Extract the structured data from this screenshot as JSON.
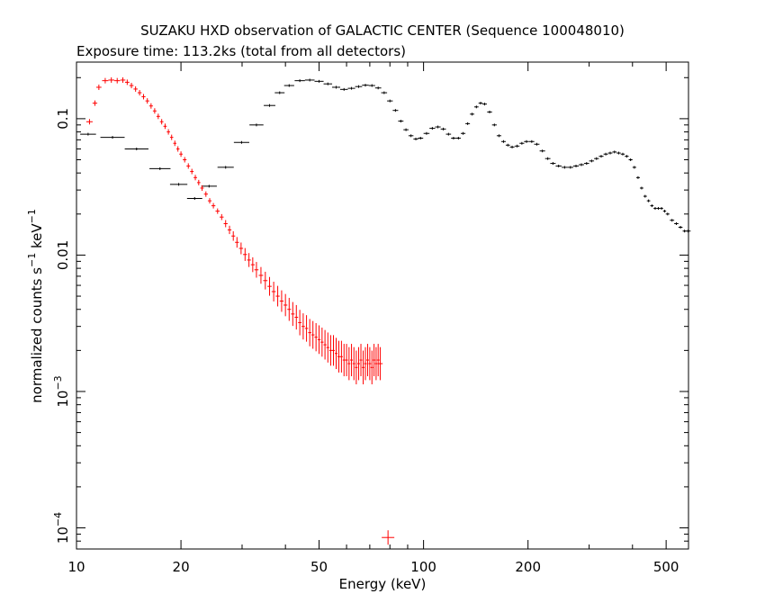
{
  "chart_data": {
    "type": "scatter",
    "title": "SUZAKU HXD observation of GALACTIC CENTER (Sequence 100048010)",
    "subtitle": "Exposure time: 113.2ks (total from all detectors)",
    "xlabel": "Energy (keV)",
    "ylabel_parts": [
      "normalized counts s",
      "−1",
      " keV",
      "−1"
    ],
    "xscale": "log",
    "yscale": "log",
    "xlim": [
      10,
      580
    ],
    "ylim": [
      7e-05,
      0.26
    ],
    "x_ticks": [
      {
        "value": 10,
        "label": "10"
      },
      {
        "value": 20,
        "label": "20"
      },
      {
        "value": 50,
        "label": "50"
      },
      {
        "value": 100,
        "label": "100"
      },
      {
        "value": 200,
        "label": "200"
      },
      {
        "value": 500,
        "label": "500"
      }
    ],
    "y_ticks": [
      {
        "value": 0.0001,
        "base": "10",
        "exp": "−4"
      },
      {
        "value": 0.001,
        "base": "10",
        "exp": "−3"
      },
      {
        "value": 0.01,
        "label": "0.01"
      },
      {
        "value": 0.1,
        "label": "0.1"
      }
    ],
    "colors": {
      "gso": "#000000",
      "pin": "#ff0000",
      "axes": "#000000"
    },
    "series": [
      {
        "color": "#000000",
        "points": [
          [
            10.8,
            0.077
          ],
          [
            12.7,
            0.073
          ],
          [
            14.9,
            0.06
          ],
          [
            17.4,
            0.043
          ],
          [
            19.7,
            0.033
          ],
          [
            21.9,
            0.026
          ],
          [
            24.1,
            0.032
          ],
          [
            26.9,
            0.044
          ],
          [
            29.9,
            0.067
          ],
          [
            33.0,
            0.09
          ],
          [
            36.0,
            0.125
          ],
          [
            38.5,
            0.155
          ],
          [
            41,
            0.175
          ],
          [
            44,
            0.19
          ],
          [
            47,
            0.192
          ],
          [
            50,
            0.188
          ],
          [
            53,
            0.18
          ],
          [
            56,
            0.17
          ],
          [
            59,
            0.164
          ],
          [
            62,
            0.167
          ],
          [
            65,
            0.172
          ],
          [
            68,
            0.176
          ],
          [
            71,
            0.175
          ],
          [
            74,
            0.168
          ],
          [
            77,
            0.155
          ],
          [
            80,
            0.135
          ],
          [
            83,
            0.115
          ],
          [
            86,
            0.096
          ],
          [
            89,
            0.083
          ],
          [
            92,
            0.075
          ],
          [
            95,
            0.071
          ],
          [
            98,
            0.072
          ],
          [
            102,
            0.078
          ],
          [
            106,
            0.085
          ],
          [
            110,
            0.087
          ],
          [
            114,
            0.084
          ],
          [
            118,
            0.077
          ],
          [
            122,
            0.072
          ],
          [
            126,
            0.072
          ],
          [
            130,
            0.078
          ],
          [
            134,
            0.092
          ],
          [
            138,
            0.108
          ],
          [
            142,
            0.122
          ],
          [
            146,
            0.13
          ],
          [
            150,
            0.128
          ],
          [
            155,
            0.112
          ],
          [
            160,
            0.09
          ],
          [
            165,
            0.075
          ],
          [
            170,
            0.068
          ],
          [
            175,
            0.064
          ],
          [
            180,
            0.062
          ],
          [
            186,
            0.063
          ],
          [
            192,
            0.066
          ],
          [
            198,
            0.068
          ],
          [
            205,
            0.068
          ],
          [
            212,
            0.065
          ],
          [
            220,
            0.058
          ],
          [
            228,
            0.051
          ],
          [
            236,
            0.047
          ],
          [
            245,
            0.045
          ],
          [
            255,
            0.044
          ],
          [
            265,
            0.044
          ],
          [
            275,
            0.045
          ],
          [
            285,
            0.046
          ],
          [
            295,
            0.047
          ],
          [
            305,
            0.049
          ],
          [
            315,
            0.051
          ],
          [
            325,
            0.053
          ],
          [
            335,
            0.055
          ],
          [
            345,
            0.056
          ],
          [
            355,
            0.057
          ],
          [
            365,
            0.056
          ],
          [
            375,
            0.055
          ],
          [
            385,
            0.053
          ],
          [
            395,
            0.05
          ],
          [
            405,
            0.044
          ],
          [
            415,
            0.037
          ],
          [
            425,
            0.031
          ],
          [
            435,
            0.027
          ],
          [
            445,
            0.025
          ],
          [
            455,
            0.023
          ],
          [
            465,
            0.022
          ],
          [
            475,
            0.022
          ],
          [
            485,
            0.022
          ],
          [
            495,
            0.021
          ],
          [
            505,
            0.02
          ],
          [
            520,
            0.018
          ],
          [
            535,
            0.017
          ],
          [
            550,
            0.016
          ],
          [
            565,
            0.015
          ],
          [
            578,
            0.015
          ]
        ]
      },
      {
        "color": "#ff0000",
        "points": [
          [
            10.9,
            0.095
          ],
          [
            11.3,
            0.13
          ],
          [
            11.6,
            0.17
          ],
          [
            12.1,
            0.19
          ],
          [
            12.6,
            0.192
          ],
          [
            13.1,
            0.19
          ],
          [
            13.6,
            0.192
          ],
          [
            14.0,
            0.185
          ],
          [
            14.4,
            0.175
          ],
          [
            14.8,
            0.165
          ],
          [
            15.2,
            0.155
          ],
          [
            15.6,
            0.145
          ],
          [
            16.0,
            0.135
          ],
          [
            16.4,
            0.124
          ],
          [
            16.8,
            0.114
          ],
          [
            17.2,
            0.104
          ],
          [
            17.6,
            0.095
          ],
          [
            18.0,
            0.088
          ],
          [
            18.4,
            0.08
          ],
          [
            18.8,
            0.073
          ],
          [
            19.2,
            0.066
          ],
          [
            19.6,
            0.06
          ],
          [
            20.0,
            0.055
          ],
          [
            20.5,
            0.05
          ],
          [
            21.0,
            0.045
          ],
          [
            21.5,
            0.041
          ],
          [
            22.0,
            0.037
          ],
          [
            22.5,
            0.034
          ],
          [
            23.0,
            0.031
          ],
          [
            23.6,
            0.028
          ],
          [
            24.2,
            0.025
          ],
          [
            24.8,
            0.023
          ],
          [
            25.5,
            0.021
          ],
          [
            26.2,
            0.019
          ],
          [
            26.9,
            0.017
          ],
          [
            27.6,
            0.0153
          ],
          [
            28.3,
            0.0138
          ],
          [
            29.0,
            0.0124
          ],
          [
            29.8,
            0.0112
          ],
          [
            30.6,
            0.0101
          ],
          [
            31.4,
            0.0092
          ],
          [
            32.2,
            0.0085
          ],
          [
            33.0,
            0.0078
          ],
          [
            34.0,
            0.0071
          ],
          [
            35.0,
            0.0065
          ],
          [
            36.0,
            0.0059
          ],
          [
            37.0,
            0.0054
          ],
          [
            38.0,
            0.005
          ],
          [
            39.0,
            0.0046
          ],
          [
            40.0,
            0.0043
          ],
          [
            41.0,
            0.004
          ],
          [
            42.0,
            0.0037
          ],
          [
            43.0,
            0.0035
          ],
          [
            44.0,
            0.0032
          ],
          [
            45.0,
            0.003
          ],
          [
            46.0,
            0.0029
          ],
          [
            47.0,
            0.0027
          ],
          [
            48.0,
            0.0026
          ],
          [
            49.0,
            0.0025
          ],
          [
            50.0,
            0.0024
          ],
          [
            51.0,
            0.0023
          ],
          [
            52.0,
            0.0022
          ],
          [
            53.0,
            0.0021
          ],
          [
            54.0,
            0.002
          ],
          [
            55.0,
            0.002
          ],
          [
            56.0,
            0.0019
          ],
          [
            57.0,
            0.0018
          ],
          [
            58.0,
            0.0018
          ],
          [
            59.0,
            0.0017
          ],
          [
            60.0,
            0.0017
          ],
          [
            61.0,
            0.0016
          ],
          [
            62.0,
            0.0017
          ],
          [
            63.0,
            0.0016
          ],
          [
            64.0,
            0.0015
          ],
          [
            65.0,
            0.0016
          ],
          [
            66.0,
            0.0017
          ],
          [
            67.0,
            0.0015
          ],
          [
            68.0,
            0.0016
          ],
          [
            69.0,
            0.0017
          ],
          [
            70.0,
            0.0016
          ],
          [
            71.0,
            0.0015
          ],
          [
            72.0,
            0.0017
          ],
          [
            73.0,
            0.0016
          ],
          [
            74.0,
            0.0017
          ],
          [
            75.0,
            0.0016
          ],
          [
            79.0,
            8.5e-05
          ]
        ]
      }
    ]
  }
}
